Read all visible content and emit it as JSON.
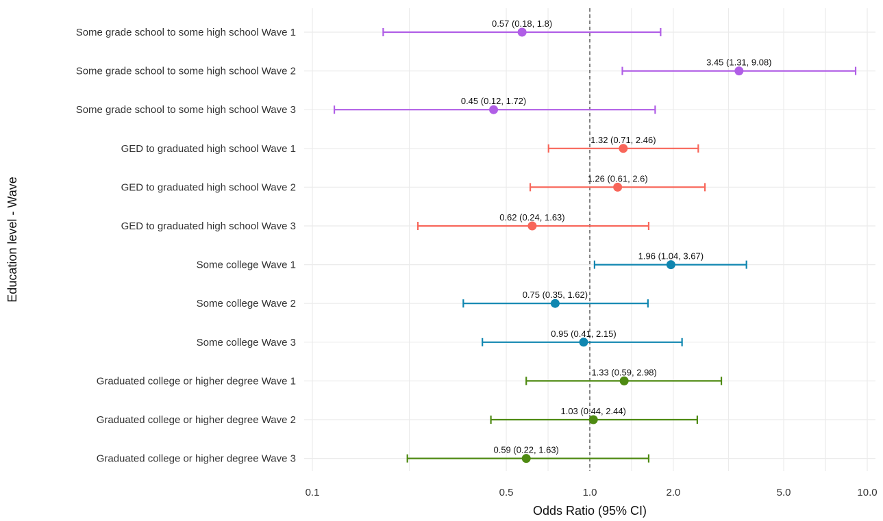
{
  "chart_data": {
    "type": "forest",
    "xlabel": "Odds Ratio (95% CI)",
    "ylabel": "Education level - Wave",
    "x_scale": "log",
    "xlim": [
      0.1,
      10.0
    ],
    "x_ticks": [
      0.1,
      0.5,
      1.0,
      2.0,
      5.0,
      10.0
    ],
    "x_tick_labels": [
      "0.1",
      "0.5",
      "1.0",
      "2.0",
      "5.0",
      "10.0"
    ],
    "reference_line": 1.0,
    "grid": true,
    "colors": {
      "Some grade school to some high school": "#b05ee6",
      "GED to graduated high school": "#f8665a",
      "Some college": "#0f86b0",
      "Graduated college or higher degree": "#4e8a12"
    },
    "rows": [
      {
        "label": "Some grade school to some high school Wave 1",
        "group": "Some grade school to some high school",
        "or": 0.57,
        "lo": 0.18,
        "hi": 1.8,
        "text": "0.57 (0.18, 1.8)"
      },
      {
        "label": "Some grade school to some high school Wave 2",
        "group": "Some grade school to some high school",
        "or": 3.45,
        "lo": 1.31,
        "hi": 9.08,
        "text": "3.45 (1.31, 9.08)"
      },
      {
        "label": "Some grade school to some high school Wave 3",
        "group": "Some grade school to some high school",
        "or": 0.45,
        "lo": 0.12,
        "hi": 1.72,
        "text": "0.45 (0.12, 1.72)"
      },
      {
        "label": "GED to graduated high school Wave 1",
        "group": "GED to graduated high school",
        "or": 1.32,
        "lo": 0.71,
        "hi": 2.46,
        "text": "1.32 (0.71, 2.46)"
      },
      {
        "label": "GED to graduated high school Wave 2",
        "group": "GED to graduated high school",
        "or": 1.26,
        "lo": 0.61,
        "hi": 2.6,
        "text": "1.26 (0.61, 2.6)"
      },
      {
        "label": "GED to graduated high school Wave 3",
        "group": "GED to graduated high school",
        "or": 0.62,
        "lo": 0.24,
        "hi": 1.63,
        "text": "0.62 (0.24, 1.63)"
      },
      {
        "label": "Some college Wave 1",
        "group": "Some college",
        "or": 1.96,
        "lo": 1.04,
        "hi": 3.67,
        "text": "1.96 (1.04, 3.67)"
      },
      {
        "label": "Some college Wave 2",
        "group": "Some college",
        "or": 0.75,
        "lo": 0.35,
        "hi": 1.62,
        "text": "0.75 (0.35, 1.62)"
      },
      {
        "label": "Some college Wave 3",
        "group": "Some college",
        "or": 0.95,
        "lo": 0.41,
        "hi": 2.15,
        "text": "0.95 (0.41, 2.15)"
      },
      {
        "label": "Graduated college or higher degree Wave 1",
        "group": "Graduated college or higher degree",
        "or": 1.33,
        "lo": 0.59,
        "hi": 2.98,
        "text": "1.33 (0.59, 2.98)"
      },
      {
        "label": "Graduated college or higher degree Wave 2",
        "group": "Graduated college or higher degree",
        "or": 1.03,
        "lo": 0.44,
        "hi": 2.44,
        "text": "1.03 (0.44, 2.44)"
      },
      {
        "label": "Graduated college or higher degree Wave 3",
        "group": "Graduated college or higher degree",
        "or": 0.59,
        "lo": 0.22,
        "hi": 1.63,
        "text": "0.59 (0.22, 1.63)"
      }
    ]
  }
}
